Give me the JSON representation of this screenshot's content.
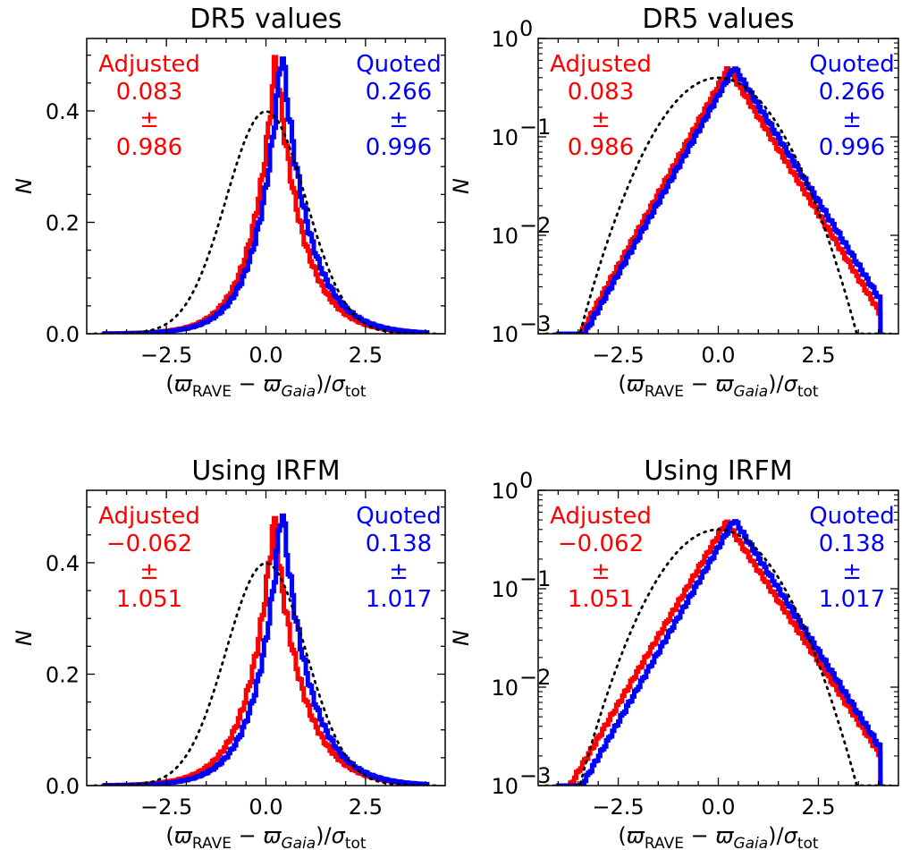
{
  "chart_data": [
    {
      "type": "line",
      "title": "DR5 values",
      "xlabel": "(ϖRAVE − ϖGaia)/σtot",
      "ylabel": "N",
      "xlim": [
        -4.5,
        4.5
      ],
      "ylim": [
        0,
        0.53
      ],
      "yscale": "linear",
      "x_ticks": [
        -2.5,
        0.0,
        2.5
      ],
      "x_tick_labels": [
        "−2.5",
        "0.0",
        "2.5"
      ],
      "y_ticks": [
        0.0,
        0.2,
        0.4
      ],
      "y_tick_labels": [
        "0.0",
        "0.2",
        "0.4"
      ],
      "grid": false,
      "series": [
        {
          "name": "Adjusted",
          "color": "#ff0000",
          "mean": 0.083,
          "sigma": 0.986,
          "peak_x": 0.25,
          "peak": 0.5
        },
        {
          "name": "Quoted",
          "color": "#0000ff",
          "mean": 0.266,
          "sigma": 0.996,
          "peak_x": 0.4,
          "peak": 0.515
        },
        {
          "name": "",
          "color": "#000000",
          "style": "dotted",
          "mean": 0,
          "sigma": 1
        }
      ],
      "annotations": {
        "left": {
          "color": "#ff0000",
          "lines": [
            "Adjusted",
            "0.083",
            "±",
            "0.986"
          ]
        },
        "right": {
          "color": "#0000ff",
          "lines": [
            "Quoted",
            "0.266",
            "±",
            "0.996"
          ]
        }
      }
    },
    {
      "type": "line",
      "title": "DR5 values",
      "xlabel": "(ϖRAVE − ϖGaia)/σtot",
      "ylabel": "N",
      "xlim": [
        -4.5,
        4.5
      ],
      "ylim": [
        0.001,
        1
      ],
      "yscale": "log",
      "x_ticks": [
        -2.5,
        0.0,
        2.5
      ],
      "x_tick_labels": [
        "−2.5",
        "0.0",
        "2.5"
      ],
      "y_ticks": [
        0.001,
        0.01,
        0.1,
        1
      ],
      "y_tick_labels": [
        "10",
        "10",
        "10",
        "10"
      ],
      "y_tick_exponents": [
        "−3",
        "−2",
        "−1",
        "0"
      ],
      "grid": false,
      "series": [
        {
          "name": "Adjusted",
          "color": "#ff0000",
          "mean": 0.083,
          "sigma": 0.986,
          "peak_x": 0.25,
          "peak": 0.5
        },
        {
          "name": "Quoted",
          "color": "#0000ff",
          "mean": 0.266,
          "sigma": 0.996,
          "peak_x": 0.4,
          "peak": 0.515
        },
        {
          "name": "",
          "color": "#000000",
          "style": "dotted",
          "mean": 0,
          "sigma": 1
        }
      ],
      "annotations": {
        "left": {
          "color": "#ff0000",
          "lines": [
            "Adjusted",
            "0.083",
            "±",
            "0.986"
          ]
        },
        "right": {
          "color": "#0000ff",
          "lines": [
            "Quoted",
            "0.266",
            "±",
            "0.996"
          ]
        }
      }
    },
    {
      "type": "line",
      "title": "Using IRFM",
      "xlabel": "(ϖRAVE − ϖGaia)/σtot",
      "ylabel": "N",
      "xlim": [
        -4.5,
        4.5
      ],
      "ylim": [
        0,
        0.53
      ],
      "yscale": "linear",
      "x_ticks": [
        -2.5,
        0.0,
        2.5
      ],
      "x_tick_labels": [
        "−2.5",
        "0.0",
        "2.5"
      ],
      "y_ticks": [
        0.0,
        0.2,
        0.4
      ],
      "y_tick_labels": [
        "0.0",
        "0.2",
        "0.4"
      ],
      "grid": false,
      "series": [
        {
          "name": "Adjusted",
          "color": "#ff0000",
          "mean": -0.062,
          "sigma": 1.051,
          "peak_x": 0.2,
          "peak": 0.48
        },
        {
          "name": "Quoted",
          "color": "#0000ff",
          "mean": 0.138,
          "sigma": 1.017,
          "peak_x": 0.4,
          "peak": 0.505
        },
        {
          "name": "",
          "color": "#000000",
          "style": "dotted",
          "mean": 0,
          "sigma": 1
        }
      ],
      "annotations": {
        "left": {
          "color": "#ff0000",
          "lines": [
            "Adjusted",
            "−0.062",
            "±",
            "1.051"
          ]
        },
        "right": {
          "color": "#0000ff",
          "lines": [
            "Quoted",
            "0.138",
            "±",
            "1.017"
          ]
        }
      }
    },
    {
      "type": "line",
      "title": "Using IRFM",
      "xlabel": "(ϖRAVE − ϖGaia)/σtot",
      "ylabel": "N",
      "xlim": [
        -4.5,
        4.5
      ],
      "ylim": [
        0.001,
        1
      ],
      "yscale": "log",
      "x_ticks": [
        -2.5,
        0.0,
        2.5
      ],
      "x_tick_labels": [
        "−2.5",
        "0.0",
        "2.5"
      ],
      "y_ticks": [
        0.001,
        0.01,
        0.1,
        1
      ],
      "y_tick_labels": [
        "10",
        "10",
        "10",
        "10"
      ],
      "y_tick_exponents": [
        "−3",
        "−2",
        "−1",
        "0"
      ],
      "grid": false,
      "series": [
        {
          "name": "Adjusted",
          "color": "#ff0000",
          "mean": -0.062,
          "sigma": 1.051,
          "peak_x": 0.2,
          "peak": 0.48
        },
        {
          "name": "Quoted",
          "color": "#0000ff",
          "mean": 0.138,
          "sigma": 1.017,
          "peak_x": 0.4,
          "peak": 0.505
        },
        {
          "name": "",
          "color": "#000000",
          "style": "dotted",
          "mean": 0,
          "sigma": 1
        }
      ],
      "annotations": {
        "left": {
          "color": "#ff0000",
          "lines": [
            "Adjusted",
            "−0.062",
            "±",
            "1.051"
          ]
        },
        "right": {
          "color": "#0000ff",
          "lines": [
            "Quoted",
            "0.138",
            "±",
            "1.017"
          ]
        }
      }
    }
  ]
}
